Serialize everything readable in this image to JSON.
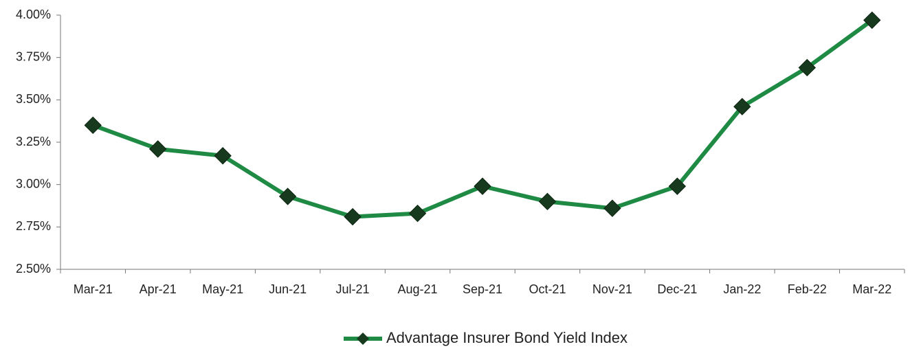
{
  "chart_data": {
    "type": "line",
    "categories": [
      "Mar-21",
      "Apr-21",
      "May-21",
      "Jun-21",
      "Jul-21",
      "Aug-21",
      "Sep-21",
      "Oct-21",
      "Nov-21",
      "Dec-21",
      "Jan-22",
      "Feb-22",
      "Mar-22"
    ],
    "series": [
      {
        "name": "Advantage Insurer Bond Yield Index",
        "color": "#1e8a44",
        "marker_color": "#173a1e",
        "values": [
          3.35,
          3.21,
          3.17,
          2.93,
          2.81,
          2.83,
          2.99,
          2.9,
          2.86,
          2.99,
          3.46,
          3.69,
          3.97
        ]
      }
    ],
    "ylim": [
      2.5,
      4.0
    ],
    "yticks": [
      {
        "value": 2.5,
        "label": "2.50%"
      },
      {
        "value": 2.75,
        "label": "2.75%"
      },
      {
        "value": 3.0,
        "label": "3.00%"
      },
      {
        "value": 3.25,
        "label": "3.25%"
      },
      {
        "value": 3.5,
        "label": "3.50%"
      },
      {
        "value": 3.75,
        "label": "3.75%"
      },
      {
        "value": 4.0,
        "label": "4.00%"
      }
    ],
    "grid": false,
    "legend": "bottom"
  }
}
